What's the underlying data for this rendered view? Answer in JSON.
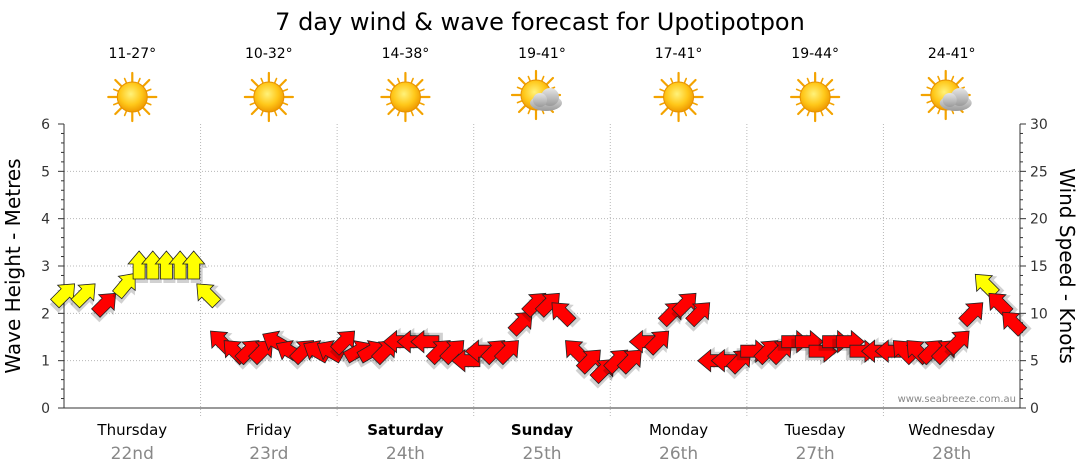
{
  "chart_data": {
    "type": "scatter",
    "title": "7 day wind & wave forecast for Upotipotpon",
    "ylabel_left": "Wave Height - Metres",
    "ylabel_right": "Wind Speed - Knots",
    "ylim_left": [
      0,
      6
    ],
    "ylim_right": [
      0,
      30
    ],
    "left_ticks": [
      "0",
      "1",
      "2",
      "3",
      "4",
      "5",
      "6"
    ],
    "right_ticks": [
      "0",
      "5",
      "10",
      "15",
      "20",
      "25",
      "30"
    ],
    "grid": true,
    "credit": "www.seabreeze.com.au",
    "days": [
      {
        "name": "Thursday",
        "date": "22nd",
        "temp": "11-27°",
        "icon": "sun-icon",
        "bold": false
      },
      {
        "name": "Friday",
        "date": "23rd",
        "temp": "10-32°",
        "icon": "sun-icon",
        "bold": false
      },
      {
        "name": "Saturday",
        "date": "24th",
        "temp": "14-38°",
        "icon": "sun-icon",
        "bold": true
      },
      {
        "name": "Sunday",
        "date": "25th",
        "temp": "19-41°",
        "icon": "sun-cloud-icon",
        "bold": true
      },
      {
        "name": "Monday",
        "date": "26th",
        "temp": "17-41°",
        "icon": "sun-icon",
        "bold": false
      },
      {
        "name": "Tuesday",
        "date": "27th",
        "temp": "19-44°",
        "icon": "sun-icon",
        "bold": false
      },
      {
        "name": "Wednesday",
        "date": "28th",
        "temp": "24-41°",
        "icon": "sun-cloud-icon",
        "bold": false
      }
    ],
    "legend": {
      "strong_wind_color": "#ffff00",
      "wind_color": "#ff0000"
    },
    "series": [
      {
        "x_days": [
          0.0,
          0.15,
          0.3,
          0.45,
          0.55,
          0.65,
          0.75,
          0.85,
          0.95,
          1.05,
          1.15,
          1.25,
          1.35,
          1.45,
          1.55,
          1.65,
          1.75,
          1.85,
          1.95,
          2.05,
          2.15,
          2.25,
          2.35,
          2.45,
          2.55,
          2.65,
          2.75,
          2.85,
          2.95,
          3.05,
          3.15,
          3.25,
          3.35,
          3.45,
          3.55,
          3.65,
          3.75,
          3.85,
          3.95,
          4.05,
          4.15,
          4.25,
          4.35,
          4.45,
          4.55,
          4.65,
          4.75,
          4.85,
          4.95,
          5.05,
          5.15,
          5.25,
          5.35,
          5.45,
          5.55,
          5.65,
          5.75,
          5.85,
          5.95,
          6.05,
          6.15,
          6.25,
          6.35,
          6.45,
          6.55,
          6.65,
          6.75,
          6.85,
          6.95
        ],
        "wind_knots": [
          12,
          12,
          11,
          13,
          15,
          15,
          15,
          15,
          15,
          12,
          7,
          6,
          6,
          6,
          7,
          6,
          6,
          6,
          6,
          7,
          6,
          6,
          6,
          7,
          7,
          7,
          6,
          6,
          5,
          6,
          6,
          6,
          9,
          11,
          11,
          10,
          6,
          5,
          4,
          5,
          5,
          7,
          7,
          10,
          11,
          10,
          5,
          5,
          5,
          6,
          6,
          6,
          7,
          7,
          6,
          7,
          7,
          6,
          6,
          6,
          6,
          6,
          6,
          6,
          7,
          10,
          13,
          11,
          9
        ],
        "wind_dir_deg": [
          45,
          45,
          45,
          40,
          0,
          0,
          0,
          0,
          0,
          315,
          315,
          315,
          45,
          45,
          300,
          300,
          45,
          300,
          300,
          45,
          60,
          60,
          45,
          270,
          270,
          270,
          45,
          45,
          270,
          270,
          45,
          45,
          45,
          45,
          45,
          315,
          315,
          45,
          45,
          45,
          45,
          270,
          45,
          45,
          45,
          45,
          270,
          270,
          45,
          90,
          45,
          45,
          90,
          90,
          90,
          90,
          90,
          90,
          270,
          270,
          315,
          315,
          45,
          45,
          45,
          45,
          315,
          315,
          315
        ]
      }
    ]
  }
}
